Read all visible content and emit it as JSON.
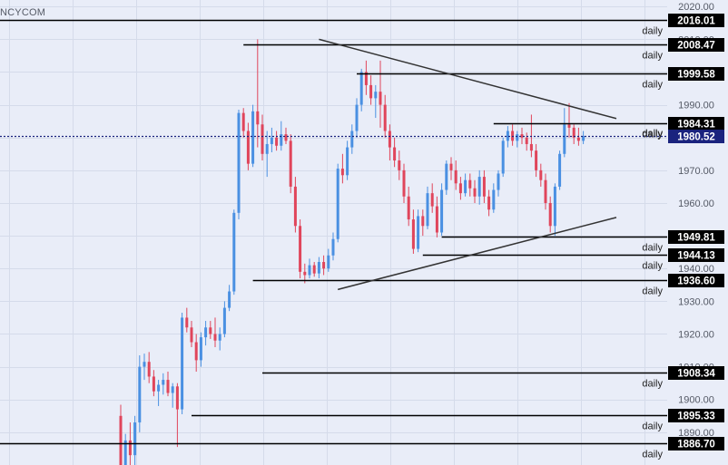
{
  "watermark": "NCYCOM",
  "colors": {
    "background": "#e9edf8",
    "grid": "#d5dbea",
    "up": "#4a90e2",
    "down": "#e0455b",
    "level_line": "#000000",
    "trend_line": "#333333",
    "price_line": "#1a237e",
    "label_bg": "#000000",
    "current_label_bg": "#1a237e",
    "label_text": "#ffffff",
    "axis_text": "#555a66"
  },
  "chart_data": {
    "type": "candlestick",
    "timeframe_label": "daily",
    "y_axis": {
      "range": [
        1880,
        2022
      ],
      "ticks": [
        1890.0,
        1900.0,
        1910.0,
        1920.0,
        1930.0,
        1940.0,
        1950.0,
        1960.0,
        1970.0,
        1980.0,
        1990.0,
        2000.0,
        2010.0,
        2020.0
      ],
      "tick_labels": [
        "1890.00",
        "1900.00",
        "1910.00",
        "1920.00",
        "1930.00",
        "1940.00",
        "1950.00",
        "1960.00",
        "1970.00",
        "1980.00",
        "1990.00",
        "2000.00",
        "2010.00",
        "2020.00"
      ]
    },
    "current_price": {
      "value": 1980.52,
      "label": "1980.52"
    },
    "levels": [
      {
        "value": 2016.01,
        "label": "2016.01",
        "tag": "daily",
        "from_bar": 0
      },
      {
        "value": 2008.47,
        "label": "2008.47",
        "tag": "daily",
        "from_bar": 26
      },
      {
        "value": 1999.58,
        "label": "1999.58",
        "tag": "daily",
        "from_bar": 50
      },
      {
        "value": 1984.31,
        "label": "1984.31",
        "tag": "daily",
        "from_bar": 79
      },
      {
        "value": 1949.81,
        "label": "1949.81",
        "tag": "daily",
        "from_bar": 68
      },
      {
        "value": 1944.13,
        "label": "1944.13",
        "tag": "daily",
        "from_bar": 64
      },
      {
        "value": 1936.6,
        "label": "1936.60",
        "tag": "daily",
        "from_bar": 28
      },
      {
        "value": 1908.34,
        "label": "1908.34",
        "tag": "daily",
        "from_bar": 30
      },
      {
        "value": 1895.33,
        "label": "1895.33",
        "tag": "daily",
        "from_bar": 15
      },
      {
        "value": 1886.7,
        "label": "1886.70",
        "tag": "daily",
        "from_bar": 0
      }
    ],
    "trendlines": [
      {
        "name": "upper",
        "from": {
          "bar": 42,
          "value": 2010.0
        },
        "to": {
          "bar": 105,
          "value": 1985.8
        }
      },
      {
        "name": "lower",
        "from": {
          "bar": 46,
          "value": 1933.6
        },
        "to": {
          "bar": 105,
          "value": 1955.6
        }
      }
    ],
    "candles": [
      [
        0,
        1895.0,
        1898.4,
        1875.0,
        1878.0
      ],
      [
        0,
        1878.0,
        1889.5,
        1875.0,
        1887.5
      ],
      [
        0,
        1887.5,
        1893.0,
        1880.0,
        1883.0
      ],
      [
        0,
        1883.0,
        1895.0,
        1879.0,
        1893.0
      ],
      [
        0,
        1893.0,
        1913.5,
        1890.0,
        1910.0
      ],
      [
        0,
        1910.0,
        1914.0,
        1906.0,
        1911.5
      ],
      [
        0,
        1911.5,
        1914.5,
        1905.0,
        1907.0
      ],
      [
        0,
        1907.0,
        1909.0,
        1901.0,
        1902.5
      ],
      [
        0,
        1902.5,
        1906.0,
        1898.0,
        1904.5
      ],
      [
        0,
        1904.5,
        1908.0,
        1901.5,
        1906.0
      ],
      [
        0,
        1906.0,
        1908.5,
        1901.0,
        1902.0
      ],
      [
        0,
        1902.0,
        1905.0,
        1897.5,
        1904.0
      ],
      [
        0,
        1904.0,
        1905.0,
        1885.5,
        1897.0
      ],
      [
        0,
        1897.0,
        1926.5,
        1895.5,
        1925.0
      ],
      [
        0,
        1925.0,
        1928.0,
        1920.5,
        1922.0
      ],
      [
        0,
        1922.0,
        1924.0,
        1916.0,
        1917.5
      ],
      [
        0,
        1917.5,
        1920.0,
        1908.5,
        1912.0
      ],
      [
        0,
        1912.0,
        1920.5,
        1910.0,
        1919.0
      ],
      [
        0,
        1919.0,
        1924.0,
        1916.5,
        1922.0
      ],
      [
        0,
        1922.0,
        1924.0,
        1918.5,
        1920.0
      ],
      [
        0,
        1920.0,
        1925.0,
        1916.0,
        1918.0
      ],
      [
        0,
        1918.0,
        1922.0,
        1915.0,
        1920.0
      ],
      [
        0,
        1920.0,
        1930.0,
        1919.0,
        1928.0
      ],
      [
        0,
        1928.0,
        1935.0,
        1927.0,
        1933.0
      ],
      [
        0,
        1933.0,
        1958.0,
        1932.0,
        1957.0
      ],
      [
        0,
        1957.0,
        1988.5,
        1955.0,
        1987.5
      ],
      [
        0,
        1987.5,
        1989.0,
        1980.0,
        1982.0
      ],
      [
        0,
        1982.0,
        1984.5,
        1970.0,
        1972.0
      ],
      [
        0,
        1972.0,
        1990.0,
        1971.0,
        1988.0
      ],
      [
        0,
        1988.0,
        2010.0,
        1977.0,
        1984.0
      ],
      [
        0,
        1984.0,
        1987.0,
        1973.0,
        1975.0
      ],
      [
        0,
        1975.0,
        1982.0,
        1968.0,
        1978.0
      ],
      [
        0,
        1978.0,
        1983.0,
        1975.5,
        1980.0
      ],
      [
        0,
        1980.0,
        1982.0,
        1976.0,
        1977.5
      ],
      [
        0,
        1977.5,
        1985.0,
        1976.0,
        1981.0
      ],
      [
        0,
        1981.0,
        1983.0,
        1978.0,
        1979.0
      ],
      [
        0,
        1979.0,
        1981.0,
        1963.0,
        1965.0
      ],
      [
        0,
        1965.0,
        1968.0,
        1951.0,
        1953.0
      ],
      [
        0,
        1953.0,
        1955.0,
        1937.0,
        1939.0
      ],
      [
        0,
        1939.0,
        1941.5,
        1935.5,
        1938.0
      ],
      [
        0,
        1938.0,
        1943.0,
        1937.0,
        1941.0
      ],
      [
        0,
        1941.0,
        1942.0,
        1937.5,
        1938.5
      ],
      [
        0,
        1938.5,
        1943.5,
        1937.0,
        1942.0
      ],
      [
        0,
        1942.0,
        1944.0,
        1938.0,
        1940.0
      ],
      [
        0,
        1940.0,
        1946.0,
        1939.0,
        1944.0
      ],
      [
        0,
        1944.0,
        1951.0,
        1942.5,
        1949.0
      ],
      [
        0,
        1949.0,
        1972.0,
        1948.0,
        1970.5
      ],
      [
        0,
        1970.5,
        1975.0,
        1966.0,
        1968.5
      ],
      [
        0,
        1968.5,
        1979.0,
        1967.0,
        1977.0
      ],
      [
        0,
        1977.0,
        1984.0,
        1975.0,
        1982.0
      ],
      [
        0,
        1982.0,
        1992.0,
        1980.0,
        1990.0
      ],
      [
        0,
        1990.0,
        2001.0,
        1988.0,
        2000.0
      ],
      [
        0,
        2000.0,
        2003.5,
        1993.0,
        1996.0
      ],
      [
        0,
        1996.0,
        1999.0,
        1990.0,
        1992.0
      ],
      [
        0,
        1992.0,
        1996.0,
        1986.0,
        1994.0
      ],
      [
        0,
        1994.0,
        2003.5,
        1983.0,
        1990.0
      ],
      [
        0,
        1990.0,
        1993.0,
        1980.0,
        1982.0
      ],
      [
        0,
        1982.0,
        1984.0,
        1973.0,
        1977.0
      ],
      [
        0,
        1977.0,
        1980.0,
        1971.0,
        1973.0
      ],
      [
        0,
        1973.0,
        1976.0,
        1967.0,
        1970.0
      ],
      [
        0,
        1970.0,
        1972.0,
        1960.0,
        1962.0
      ],
      [
        0,
        1962.0,
        1965.0,
        1953.0,
        1955.0
      ],
      [
        0,
        1955.0,
        1958.0,
        1944.5,
        1946.0
      ],
      [
        0,
        1946.0,
        1958.0,
        1945.0,
        1956.0
      ],
      [
        0,
        1956.0,
        1958.0,
        1950.0,
        1953.0
      ],
      [
        0,
        1953.0,
        1965.0,
        1952.0,
        1963.0
      ],
      [
        0,
        1963.0,
        1966.0,
        1957.0,
        1959.0
      ],
      [
        0,
        1959.0,
        1962.0,
        1949.5,
        1951.0
      ],
      [
        0,
        1951.0,
        1966.0,
        1950.0,
        1964.0
      ],
      [
        0,
        1964.0,
        1973.0,
        1962.5,
        1972.0
      ],
      [
        0,
        1972.0,
        1974.0,
        1967.0,
        1970.0
      ],
      [
        0,
        1970.0,
        1973.0,
        1964.0,
        1966.0
      ],
      [
        0,
        1966.0,
        1968.0,
        1961.0,
        1963.0
      ],
      [
        0,
        1963.0,
        1969.0,
        1962.0,
        1967.0
      ],
      [
        0,
        1967.0,
        1969.0,
        1962.0,
        1964.5
      ],
      [
        0,
        1964.5,
        1967.0,
        1960.0,
        1962.0
      ],
      [
        0,
        1962.0,
        1970.0,
        1959.5,
        1968.0
      ],
      [
        0,
        1968.0,
        1970.0,
        1960.0,
        1962.0
      ],
      [
        0,
        1962.0,
        1964.0,
        1956.0,
        1958.0
      ],
      [
        0,
        1958.0,
        1966.0,
        1957.0,
        1964.0
      ],
      [
        0,
        1964.0,
        1970.0,
        1962.0,
        1969.0
      ],
      [
        0,
        1969.0,
        1980.0,
        1968.0,
        1979.0
      ],
      [
        0,
        1979.0,
        1983.5,
        1977.0,
        1982.0
      ],
      [
        0,
        1982.0,
        1984.0,
        1977.5,
        1979.0
      ],
      [
        0,
        1979.0,
        1982.0,
        1977.0,
        1981.0
      ],
      [
        0,
        1981.0,
        1983.0,
        1978.0,
        1980.0
      ],
      [
        0,
        1980.0,
        1981.5,
        1976.0,
        1978.0
      ],
      [
        0,
        1978.0,
        1987.0,
        1974.0,
        1976.0
      ],
      [
        0,
        1976.0,
        1978.0,
        1968.0,
        1970.0
      ],
      [
        0,
        1970.0,
        1972.0,
        1965.0,
        1967.0
      ],
      [
        0,
        1967.0,
        1969.0,
        1958.0,
        1960.0
      ],
      [
        0,
        1960.0,
        1962.0,
        1951.0,
        1953.0
      ],
      [
        0,
        1953.0,
        1966.0,
        1950.0,
        1965.0
      ],
      [
        0,
        1965.0,
        1976.0,
        1964.0,
        1975.0
      ],
      [
        0,
        1975.0,
        1989.0,
        1974.0,
        1984.0
      ],
      [
        0,
        1984.0,
        1990.5,
        1980.0,
        1983.0
      ],
      [
        0,
        1983.0,
        1984.0,
        1978.0,
        1980.0
      ],
      [
        0,
        1980.0,
        1983.0,
        1977.5,
        1979.0
      ],
      [
        0,
        1979.0,
        1982.0,
        1978.0,
        1980.5
      ]
    ]
  }
}
